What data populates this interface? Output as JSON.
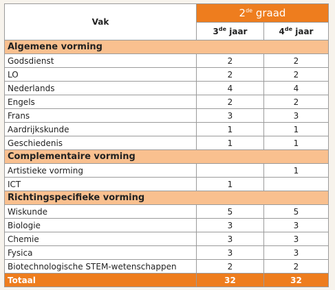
{
  "table": {
    "header": {
      "subject": "Vak",
      "grade": {
        "number": "2",
        "sup": "de",
        "rest": "graad"
      },
      "years": [
        {
          "number": "3",
          "sup": "de",
          "rest": "jaar"
        },
        {
          "number": "4",
          "sup": "de",
          "rest": "jaar"
        }
      ]
    },
    "sections": [
      {
        "title": "Algemene vorming",
        "rows": [
          [
            "Godsdienst",
            2,
            2
          ],
          [
            "LO",
            2,
            2
          ],
          [
            "Nederlands",
            4,
            4
          ],
          [
            "Engels",
            2,
            2
          ],
          [
            "Frans",
            3,
            3
          ],
          [
            "Aardrijkskunde",
            1,
            1
          ],
          [
            "Geschiedenis",
            1,
            1
          ]
        ]
      },
      {
        "title": "Complementaire vorming",
        "rows": [
          [
            "Artistieke vorming",
            null,
            1
          ],
          [
            "ICT",
            1,
            null
          ]
        ]
      },
      {
        "title": "Richtingspecifieke vorming",
        "rows": [
          [
            "Wiskunde",
            5,
            5
          ],
          [
            "Biologie",
            3,
            3
          ],
          [
            "Chemie",
            3,
            3
          ],
          [
            "Fysica",
            3,
            3
          ],
          [
            "Biotechnologische STEM-wetenschappen",
            2,
            2
          ]
        ]
      }
    ],
    "total": {
      "label": "Totaal",
      "values": [
        32,
        32
      ]
    }
  }
}
